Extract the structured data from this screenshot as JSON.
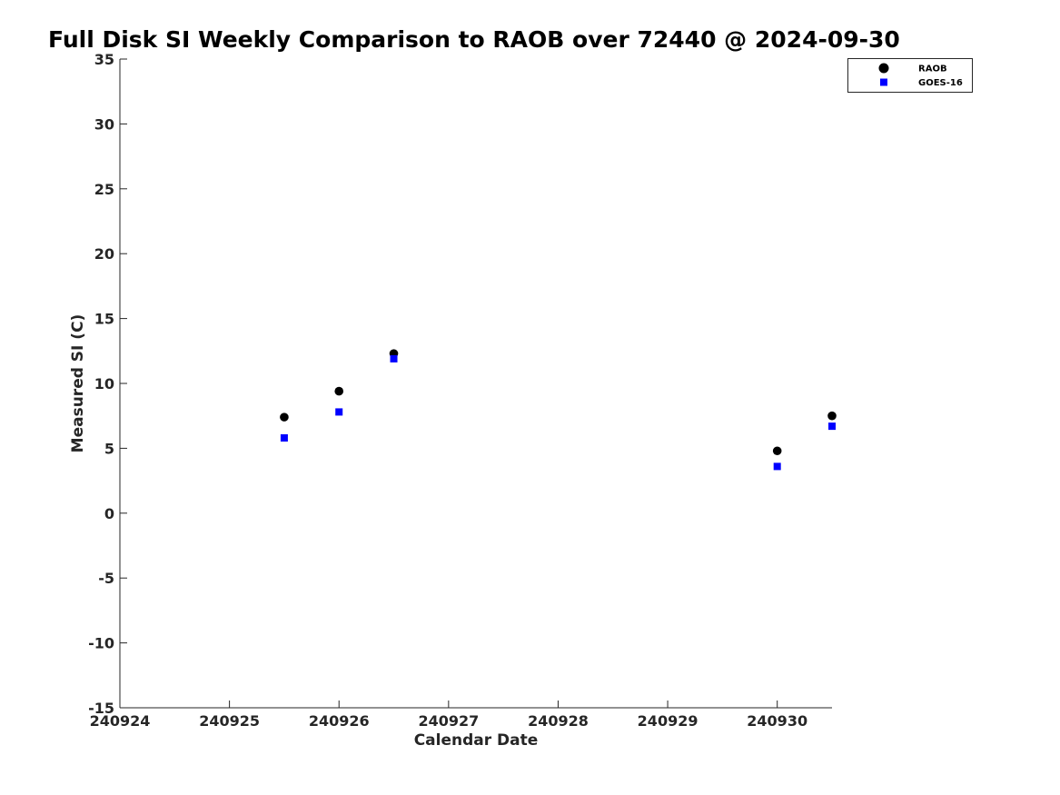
{
  "chart_data": {
    "type": "scatter",
    "title": "Full Disk SI Weekly Comparison to RAOB over 72440 @ 2024-09-30",
    "xlabel": "Calendar Date",
    "ylabel": "Measured SI (C)",
    "xlim": [
      240924,
      240930.5
    ],
    "ylim": [
      -15,
      35
    ],
    "x_ticks": [
      240924,
      240925,
      240926,
      240927,
      240928,
      240929,
      240930
    ],
    "x_tick_labels": [
      "240924",
      "240925",
      "240926",
      "240927",
      "240928",
      "240929",
      "240930"
    ],
    "y_ticks": [
      -15,
      -10,
      -5,
      0,
      5,
      10,
      15,
      20,
      25,
      30,
      35
    ],
    "y_tick_labels": [
      "-15",
      "-10",
      "-5",
      "0",
      "5",
      "10",
      "15",
      "20",
      "25",
      "30",
      "35"
    ],
    "grid": false,
    "legend_position": "top-right",
    "series": [
      {
        "name": "RAOB",
        "marker": "circle",
        "color": "#000000",
        "x": [
          240925.5,
          240926,
          240926.5,
          240930,
          240930.5
        ],
        "y": [
          7.4,
          9.4,
          12.3,
          4.8,
          7.5
        ]
      },
      {
        "name": "GOES-16",
        "marker": "square",
        "color": "#0000ff",
        "x": [
          240925.5,
          240926,
          240926.5,
          240930,
          240930.5
        ],
        "y": [
          5.8,
          7.8,
          11.9,
          3.6,
          6.7
        ]
      }
    ]
  }
}
